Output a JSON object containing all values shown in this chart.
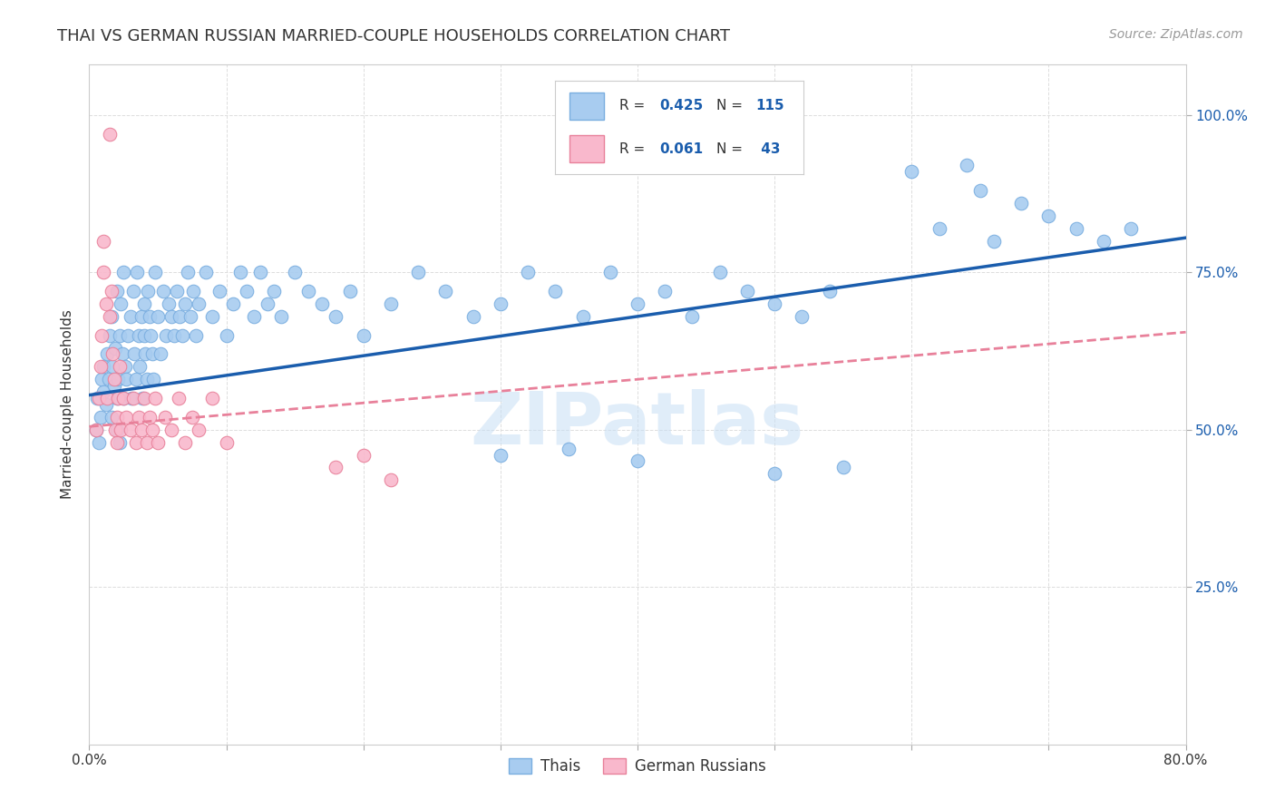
{
  "title": "THAI VS GERMAN RUSSIAN MARRIED-COUPLE HOUSEHOLDS CORRELATION CHART",
  "source": "Source: ZipAtlas.com",
  "ylabel": "Married-couple Households",
  "watermark": "ZIPatlas",
  "xmin": 0.0,
  "xmax": 0.8,
  "ymin": 0.0,
  "ymax": 1.08,
  "thai_color": "#A8CCF0",
  "thai_edge": "#7AAEE0",
  "german_color": "#F9B8CC",
  "german_edge": "#E8809A",
  "trend_thai_color": "#1A5DAD",
  "trend_german_color": "#E8809A",
  "thai_R": 0.425,
  "thai_N": 115,
  "german_R": 0.061,
  "german_N": 43,
  "thai_trend_x0": 0.0,
  "thai_trend_x1": 0.8,
  "thai_trend_y0": 0.555,
  "thai_trend_y1": 0.805,
  "german_trend_x0": 0.0,
  "german_trend_x1": 0.8,
  "german_trend_y0": 0.505,
  "german_trend_y1": 0.655,
  "thai_x": [
    0.005,
    0.006,
    0.007,
    0.008,
    0.009,
    0.01,
    0.01,
    0.012,
    0.013,
    0.014,
    0.015,
    0.016,
    0.016,
    0.017,
    0.018,
    0.019,
    0.02,
    0.02,
    0.02,
    0.021,
    0.022,
    0.022,
    0.023,
    0.024,
    0.025,
    0.025,
    0.026,
    0.027,
    0.028,
    0.03,
    0.031,
    0.032,
    0.033,
    0.034,
    0.035,
    0.036,
    0.037,
    0.038,
    0.039,
    0.04,
    0.04,
    0.041,
    0.042,
    0.043,
    0.044,
    0.045,
    0.046,
    0.047,
    0.048,
    0.05,
    0.052,
    0.054,
    0.056,
    0.058,
    0.06,
    0.062,
    0.064,
    0.066,
    0.068,
    0.07,
    0.072,
    0.074,
    0.076,
    0.078,
    0.08,
    0.085,
    0.09,
    0.095,
    0.1,
    0.105,
    0.11,
    0.115,
    0.12,
    0.125,
    0.13,
    0.135,
    0.14,
    0.15,
    0.16,
    0.17,
    0.18,
    0.19,
    0.2,
    0.22,
    0.24,
    0.26,
    0.28,
    0.3,
    0.32,
    0.34,
    0.36,
    0.38,
    0.4,
    0.42,
    0.44,
    0.46,
    0.48,
    0.5,
    0.52,
    0.54,
    0.3,
    0.35,
    0.4,
    0.5,
    0.55,
    0.6,
    0.62,
    0.64,
    0.65,
    0.66,
    0.68,
    0.7,
    0.72,
    0.74,
    0.76
  ],
  "thai_y": [
    0.5,
    0.55,
    0.48,
    0.52,
    0.58,
    0.6,
    0.56,
    0.54,
    0.62,
    0.58,
    0.65,
    0.52,
    0.68,
    0.6,
    0.57,
    0.63,
    0.55,
    0.5,
    0.72,
    0.58,
    0.65,
    0.48,
    0.7,
    0.62,
    0.55,
    0.75,
    0.6,
    0.58,
    0.65,
    0.68,
    0.55,
    0.72,
    0.62,
    0.58,
    0.75,
    0.65,
    0.6,
    0.68,
    0.55,
    0.7,
    0.65,
    0.62,
    0.58,
    0.72,
    0.68,
    0.65,
    0.62,
    0.58,
    0.75,
    0.68,
    0.62,
    0.72,
    0.65,
    0.7,
    0.68,
    0.65,
    0.72,
    0.68,
    0.65,
    0.7,
    0.75,
    0.68,
    0.72,
    0.65,
    0.7,
    0.75,
    0.68,
    0.72,
    0.65,
    0.7,
    0.75,
    0.72,
    0.68,
    0.75,
    0.7,
    0.72,
    0.68,
    0.75,
    0.72,
    0.7,
    0.68,
    0.72,
    0.65,
    0.7,
    0.75,
    0.72,
    0.68,
    0.7,
    0.75,
    0.72,
    0.68,
    0.75,
    0.7,
    0.72,
    0.68,
    0.75,
    0.72,
    0.7,
    0.68,
    0.72,
    0.46,
    0.47,
    0.45,
    0.43,
    0.44,
    0.91,
    0.82,
    0.92,
    0.88,
    0.8,
    0.86,
    0.84,
    0.82,
    0.8,
    0.82
  ],
  "german_x": [
    0.005,
    0.007,
    0.008,
    0.009,
    0.01,
    0.01,
    0.012,
    0.013,
    0.015,
    0.016,
    0.017,
    0.018,
    0.019,
    0.02,
    0.02,
    0.021,
    0.022,
    0.023,
    0.025,
    0.027,
    0.03,
    0.032,
    0.034,
    0.036,
    0.038,
    0.04,
    0.042,
    0.044,
    0.046,
    0.048,
    0.05,
    0.055,
    0.06,
    0.065,
    0.07,
    0.075,
    0.08,
    0.09,
    0.1,
    0.015,
    0.18,
    0.2,
    0.22
  ],
  "german_y": [
    0.5,
    0.55,
    0.6,
    0.65,
    0.75,
    0.8,
    0.7,
    0.55,
    0.68,
    0.72,
    0.62,
    0.58,
    0.5,
    0.52,
    0.48,
    0.55,
    0.6,
    0.5,
    0.55,
    0.52,
    0.5,
    0.55,
    0.48,
    0.52,
    0.5,
    0.55,
    0.48,
    0.52,
    0.5,
    0.55,
    0.48,
    0.52,
    0.5,
    0.55,
    0.48,
    0.52,
    0.5,
    0.55,
    0.48,
    0.97,
    0.44,
    0.46,
    0.42
  ]
}
